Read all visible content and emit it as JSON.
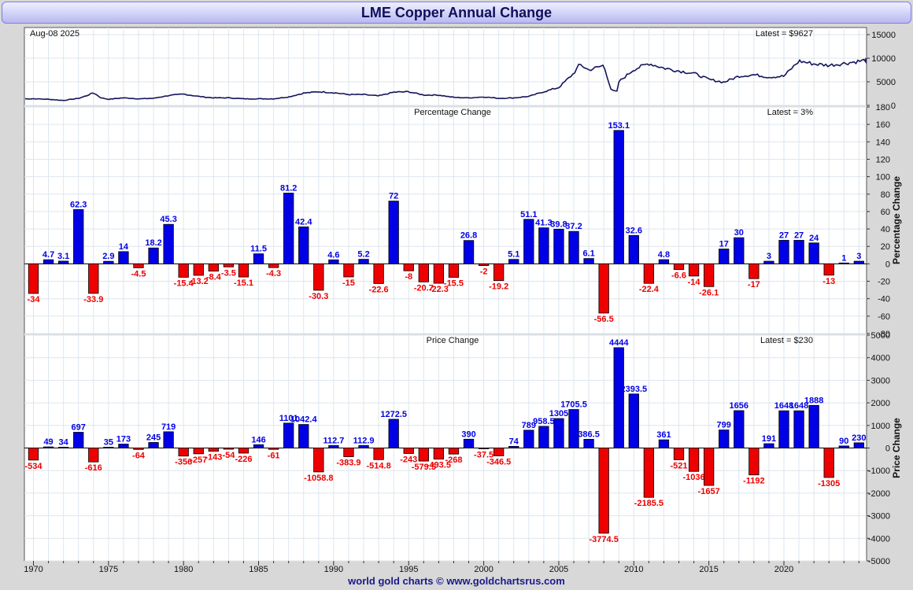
{
  "title": "LME Copper Annual Change",
  "footer": "world gold charts © www.goldchartsrus.com",
  "colors": {
    "positive": "#0000e6",
    "negative": "#ee0000",
    "line": "#14145a",
    "grid": "#dde6ee"
  },
  "chart_data": [
    {
      "type": "line",
      "panel": "price",
      "date_label": "Aug-08  2025",
      "latest_label": "Latest = $9627",
      "y_ticks": [
        0,
        5000,
        10000,
        15000
      ],
      "ylim": [
        0,
        16500
      ],
      "x": [
        1970,
        1971,
        1972,
        1973,
        1973.5,
        1974,
        1974.5,
        1975,
        1976,
        1977,
        1978,
        1979,
        1980,
        1981,
        1982,
        1983,
        1984,
        1985,
        1986,
        1987,
        1988,
        1989,
        1990,
        1991,
        1992,
        1993,
        1994,
        1995,
        1996,
        1997,
        1998,
        1999,
        2000,
        2001,
        2002,
        2003,
        2004,
        2005,
        2006,
        2006.4,
        2007,
        2007.5,
        2008,
        2008.5,
        2008.9,
        2009,
        2010,
        2011,
        2012,
        2013,
        2014,
        2015,
        2016,
        2017,
        2018,
        2019,
        2020,
        2021,
        2022,
        2023,
        2024,
        2025.6
      ],
      "values": [
        1400,
        1300,
        1050,
        1500,
        2000,
        2700,
        1600,
        1300,
        1600,
        1400,
        1500,
        2100,
        2400,
        1900,
        1600,
        1600,
        1400,
        1400,
        1400,
        1800,
        2600,
        2900,
        2700,
        2300,
        2300,
        2000,
        2800,
        2900,
        2200,
        2200,
        1700,
        1600,
        1800,
        1500,
        1600,
        1900,
        2900,
        3800,
        6800,
        8700,
        7500,
        8000,
        8500,
        3200,
        2900,
        5000,
        7600,
        8900,
        7900,
        7300,
        6800,
        5500,
        4900,
        6200,
        6500,
        6000,
        6200,
        9400,
        8800,
        8500,
        8900,
        9627
      ]
    },
    {
      "type": "bar",
      "panel": "percentage",
      "title": "Percentage Change",
      "latest_label": "Latest = 3%",
      "ylabel": "Percentage Change",
      "ylim": [
        -80,
        180
      ],
      "y_ticks": [
        -80,
        -60,
        -40,
        -20,
        0,
        20,
        40,
        60,
        80,
        100,
        120,
        140,
        160,
        180
      ],
      "x": [
        1970,
        1971,
        1972,
        1973,
        1974,
        1975,
        1976,
        1977,
        1978,
        1979,
        1980,
        1981,
        1982,
        1983,
        1984,
        1985,
        1986,
        1987,
        1988,
        1989,
        1990,
        1991,
        1992,
        1993,
        1994,
        1995,
        1996,
        1997,
        1998,
        1999,
        2000,
        2001,
        2002,
        2003,
        2004,
        2005,
        2006,
        2007,
        2008,
        2009,
        2010,
        2011,
        2012,
        2013,
        2014,
        2015,
        2016,
        2017,
        2018,
        2019,
        2020,
        2021,
        2022,
        2023,
        2024,
        2025
      ],
      "values": [
        -34,
        4.7,
        3.1,
        62.3,
        -33.9,
        2.9,
        14,
        -4.5,
        18.2,
        45.3,
        -15.4,
        -13.2,
        -8.4,
        -3.5,
        -15.1,
        11.5,
        -4.3,
        81.2,
        42.4,
        -30.3,
        4.6,
        -15,
        5.2,
        -22.6,
        72,
        -8,
        -20.7,
        -22.3,
        -15.5,
        26.8,
        -2,
        -19.2,
        5.1,
        51.1,
        41.3,
        39.8,
        37.2,
        6.1,
        -56.5,
        153.1,
        32.6,
        -22.4,
        4.8,
        -6.6,
        -14,
        -26.1,
        17,
        30,
        -17,
        3,
        27,
        27,
        24,
        -13,
        1,
        3
      ],
      "labels": [
        "-34",
        "4.7",
        "3.1",
        "62.3",
        "-33.9",
        "2.9",
        "14",
        "-4.5",
        "18.2",
        "45.3",
        "-15.4",
        "-13.2",
        "-8.4",
        "-3.5",
        "-15.1",
        "11.5",
        "-4.3",
        "81.2",
        "42.4",
        "-30.3",
        "4.6",
        "-15",
        "5.2",
        "-22.6",
        "72",
        "-8",
        "-20.7",
        "-22.3",
        "-15.5",
        "26.8",
        "-2",
        "-19.2",
        "5.1",
        "51.1",
        "41.3",
        "39.8",
        "37.2",
        "6.1",
        "-56.5",
        "153.1",
        "32.6",
        "-22.4",
        "4.8",
        "-6.6",
        "-14",
        "-26.1",
        "17",
        "30",
        "-17",
        "3",
        "27",
        "27",
        "24",
        "-13",
        "1",
        "3"
      ]
    },
    {
      "type": "bar",
      "panel": "price-change",
      "title": "Price Change",
      "latest_label": "Latest = $230",
      "ylabel": "Price Change",
      "ylim": [
        -5000,
        5000
      ],
      "y_ticks": [
        -5000,
        -4000,
        -3000,
        -2000,
        -1000,
        0,
        1000,
        2000,
        3000,
        4000,
        5000
      ],
      "x_ticks": [
        1970,
        1975,
        1980,
        1985,
        1990,
        1995,
        2000,
        2005,
        2010,
        2015,
        2020
      ],
      "x": [
        1970,
        1971,
        1972,
        1973,
        1974,
        1975,
        1976,
        1977,
        1978,
        1979,
        1980,
        1981,
        1982,
        1983,
        1984,
        1985,
        1986,
        1987,
        1988,
        1989,
        1990,
        1991,
        1992,
        1993,
        1994,
        1995,
        1996,
        1997,
        1998,
        1999,
        2000,
        2001,
        2002,
        2003,
        2004,
        2005,
        2006,
        2007,
        2008,
        2009,
        2010,
        2011,
        2012,
        2013,
        2014,
        2015,
        2016,
        2017,
        2018,
        2019,
        2020,
        2021,
        2022,
        2023,
        2024,
        2025
      ],
      "values": [
        -534,
        49,
        34,
        697,
        -616,
        35,
        173,
        -64,
        245,
        719,
        -356,
        -257,
        -143,
        -54,
        -226,
        146,
        -61,
        1101,
        1042.4,
        -1058.8,
        112.7,
        -383.9,
        112.9,
        -514.8,
        1272.5,
        -243,
        -579.5,
        -493.5,
        -268,
        390,
        -37.5,
        -346.5,
        74,
        789,
        958.5,
        1305,
        1705.5,
        386.5,
        -3774.5,
        4444,
        2393.5,
        -2185.5,
        361,
        -521,
        -1036,
        -1657,
        799,
        1656,
        -1192,
        191,
        1648,
        1648,
        1888,
        -1305,
        90,
        230
      ],
      "labels": [
        "-534",
        "49",
        "34",
        "697",
        "-616",
        "35",
        "173",
        "-64",
        "245",
        "719",
        "-356",
        "-257",
        "-143",
        "-54",
        "-226",
        "146",
        "-61",
        "1101",
        "1042.4",
        "-1058.8",
        "112.7",
        "-383.9",
        "112.9",
        "-514.8",
        "1272.5",
        "-243",
        "-579.5",
        "-493.5",
        "-268",
        "390",
        "-37.5",
        "-346.5",
        "74",
        "789",
        "958.5",
        "1305",
        "1705.5",
        "386.5",
        "-3774.5",
        "4444",
        "2393.5",
        "-2185.5",
        "361",
        "-521",
        "-1036",
        "-1657",
        "799",
        "1656",
        "-1192",
        "191",
        "1648",
        "1648",
        "1888",
        "-1305",
        "90",
        "230"
      ]
    }
  ]
}
